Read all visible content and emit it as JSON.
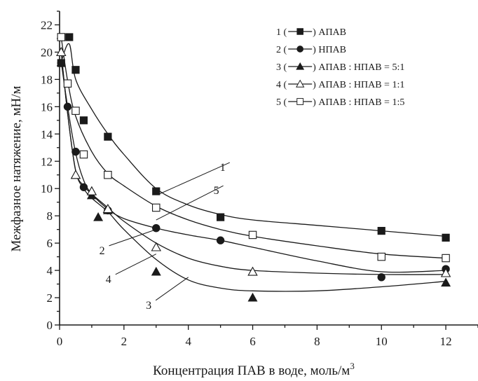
{
  "chart_data": {
    "type": "scatter",
    "title": "",
    "xlabel": "Концентрация ПАВ в воде, моль/м",
    "xlabel_sup": "3",
    "ylabel": "Межфазное натяжение, мН/м",
    "xlim": [
      0,
      13
    ],
    "ylim": [
      0,
      23
    ],
    "x_ticks": [
      0,
      2,
      4,
      6,
      8,
      10,
      12
    ],
    "y_ticks": [
      0,
      2,
      4,
      6,
      8,
      10,
      12,
      14,
      16,
      18,
      20,
      22
    ],
    "x_minor_step": 1,
    "y_minor_step": 1,
    "grid": false,
    "legend_position": "top-right",
    "series": [
      {
        "id": "1",
        "name": "АПАВ",
        "legend": "1 (—■—) АПАВ",
        "marker": "filled-square",
        "x": [
          0.05,
          0.3,
          0.5,
          0.75,
          1.5,
          3,
          5,
          10,
          12
        ],
        "y": [
          19.2,
          21.1,
          18.7,
          15.0,
          13.8,
          9.8,
          7.9,
          6.9,
          6.4
        ],
        "curve": [
          [
            0.05,
            19.3
          ],
          [
            0.3,
            20.6
          ],
          [
            0.5,
            18.0
          ],
          [
            1.0,
            15.8
          ],
          [
            1.5,
            14.0
          ],
          [
            2.0,
            12.5
          ],
          [
            3.0,
            10.0
          ],
          [
            4.0,
            8.8
          ],
          [
            5.0,
            8.1
          ],
          [
            6.0,
            7.7
          ],
          [
            8.0,
            7.3
          ],
          [
            10.0,
            6.9
          ],
          [
            12.0,
            6.5
          ]
        ]
      },
      {
        "id": "2",
        "name": "НПАВ",
        "legend": "2 (—●—) НПАВ",
        "marker": "filled-circle",
        "x": [
          0.05,
          0.25,
          0.5,
          0.75,
          1.5,
          3,
          5,
          10,
          12
        ],
        "y": [
          19.2,
          16.0,
          12.7,
          10.1,
          8.4,
          7.1,
          6.2,
          3.5,
          4.1
        ],
        "curve": [
          [
            0.05,
            19.3
          ],
          [
            0.25,
            16.0
          ],
          [
            0.5,
            12.6
          ],
          [
            0.75,
            10.6
          ],
          [
            1.0,
            9.6
          ],
          [
            1.5,
            8.5
          ],
          [
            2.0,
            7.8
          ],
          [
            3.0,
            7.1
          ],
          [
            4.0,
            6.6
          ],
          [
            5.0,
            6.2
          ],
          [
            6.0,
            5.7
          ],
          [
            8.0,
            4.7
          ],
          [
            10.0,
            3.9
          ],
          [
            12.0,
            4.0
          ]
        ]
      },
      {
        "id": "3",
        "name": "АПАВ : НПАВ = 5:1",
        "legend": "3 (—▲—) АПАВ : НПАВ = 5:1",
        "marker": "filled-triangle",
        "x": [
          0.05,
          0.5,
          1.0,
          1.2,
          1.5,
          3,
          6,
          12
        ],
        "y": [
          20.0,
          11.0,
          9.5,
          7.9,
          8.4,
          3.9,
          2.0,
          3.1
        ],
        "curve": [
          [
            0.05,
            20.0
          ],
          [
            0.25,
            15.5
          ],
          [
            0.5,
            11.3
          ],
          [
            0.75,
            10.0
          ],
          [
            1.0,
            9.3
          ],
          [
            1.5,
            8.3
          ],
          [
            2.0,
            7.0
          ],
          [
            3.0,
            4.8
          ],
          [
            4.0,
            3.3
          ],
          [
            5.0,
            2.7
          ],
          [
            6.0,
            2.5
          ],
          [
            8.0,
            2.5
          ],
          [
            10.0,
            2.8
          ],
          [
            12.0,
            3.2
          ]
        ]
      },
      {
        "id": "4",
        "name": "АПАВ : НПАВ = 1:1",
        "legend": "4 (—△—) АПАВ : НПАВ = 1:1",
        "marker": "open-triangle",
        "x": [
          0.05,
          0.5,
          1.0,
          1.5,
          3,
          6,
          12
        ],
        "y": [
          20.0,
          11.0,
          9.8,
          8.5,
          5.7,
          3.9,
          3.8
        ],
        "curve": [
          [
            0.05,
            20.0
          ],
          [
            0.25,
            15.5
          ],
          [
            0.5,
            11.3
          ],
          [
            0.75,
            10.2
          ],
          [
            1.0,
            9.6
          ],
          [
            1.5,
            8.6
          ],
          [
            2.0,
            7.6
          ],
          [
            3.0,
            6.0
          ],
          [
            4.0,
            4.9
          ],
          [
            5.0,
            4.3
          ],
          [
            6.0,
            4.0
          ],
          [
            8.0,
            3.8
          ],
          [
            10.0,
            3.7
          ],
          [
            12.0,
            3.7
          ]
        ]
      },
      {
        "id": "5",
        "name": "АПАВ : НПАВ = 1:5",
        "legend": "5 (—□—) АПАВ : НПАВ = 1:5",
        "marker": "open-square",
        "x": [
          0.05,
          0.25,
          0.5,
          0.75,
          1.5,
          3,
          6,
          10,
          12
        ],
        "y": [
          21.1,
          17.7,
          15.7,
          12.5,
          11.0,
          8.6,
          6.6,
          5.0,
          4.9
        ],
        "curve": [
          [
            0.05,
            21.1
          ],
          [
            0.25,
            17.9
          ],
          [
            0.5,
            15.3
          ],
          [
            1.0,
            12.7
          ],
          [
            1.5,
            11.1
          ],
          [
            2.0,
            10.2
          ],
          [
            3.0,
            8.7
          ],
          [
            4.0,
            7.7
          ],
          [
            5.0,
            7.0
          ],
          [
            6.0,
            6.5
          ],
          [
            8.0,
            5.8
          ],
          [
            10.0,
            5.2
          ],
          [
            12.0,
            4.9
          ]
        ]
      }
    ],
    "annotations": [
      {
        "text": "1",
        "x": 5.2,
        "y": 11.6,
        "leader_to": [
          3.1,
          9.6
        ]
      },
      {
        "text": "5",
        "x": 5.0,
        "y": 9.9,
        "leader_to": [
          3.0,
          7.7
        ]
      },
      {
        "text": "2",
        "x": 1.45,
        "y": 5.5,
        "leader_to": [
          3.0,
          7.0
        ]
      },
      {
        "text": "4",
        "x": 1.65,
        "y": 3.4,
        "leader_to": [
          3.0,
          5.2
        ]
      },
      {
        "text": "3",
        "x": 2.9,
        "y": 1.5,
        "leader_to": [
          4.0,
          3.5
        ]
      }
    ]
  }
}
